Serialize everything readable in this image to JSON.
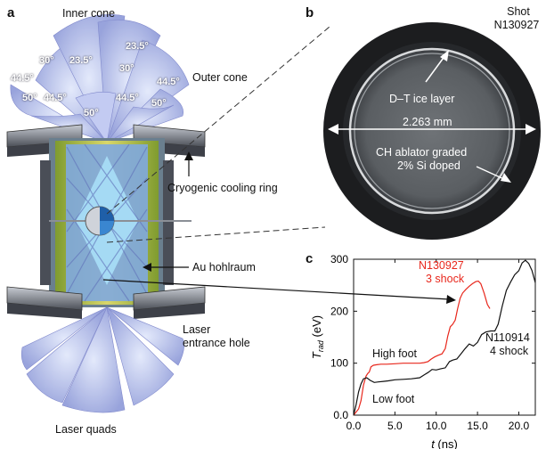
{
  "figure": {
    "panel_a": {
      "letter": "a",
      "inner_cone": "Inner cone",
      "outer_cone": "Outer cone",
      "cryo_ring": "Cryogenic cooling ring",
      "hohlraum": "Au hohlraum",
      "entrance_hole_1": "Laser",
      "entrance_hole_2": "entrance hole",
      "laser_quads": "Laser quads",
      "angles": [
        "30°",
        "23.5°",
        "23.5°",
        "30°",
        "44.5°",
        "44.5°",
        "50°",
        "44.5°",
        "50°",
        "44.5°",
        "50°"
      ]
    },
    "panel_b": {
      "letter": "b",
      "shot_1": "Shot",
      "shot_2": "N130927",
      "ice_layer": "D–T ice layer",
      "diameter": "2.263 mm",
      "ablator_1": "CH ablator graded",
      "ablator_2": "2% Si doped"
    },
    "panel_c": {
      "letter": "c"
    }
  },
  "chart_data": {
    "type": "line",
    "xlabel_var": "t",
    "xlabel_unit": "(ns)",
    "ylabel_var": "T",
    "ylabel_sub": "rad",
    "ylabel_unit": "(eV)",
    "xlim": [
      0,
      22
    ],
    "ylim": [
      0,
      300
    ],
    "xticks": [
      "0.0",
      "5.0",
      "10.0",
      "15.0",
      "20.0"
    ],
    "xtick_values": [
      0,
      5,
      10,
      15,
      20
    ],
    "yticks": [
      "0.0",
      "100",
      "200",
      "300"
    ],
    "ytick_values": [
      0,
      100,
      200,
      300
    ],
    "annotations": {
      "high_foot": "High foot",
      "low_foot": "Low foot",
      "s1_name": "N130927",
      "s1_desc": "3 shock",
      "s2_name": "N110914",
      "s2_desc": "4 shock"
    },
    "colors": {
      "s1": "#e8271c",
      "s2": "#111111"
    },
    "series": [
      {
        "name": "N130927",
        "values": [
          [
            0.0,
            0
          ],
          [
            0.3,
            6
          ],
          [
            0.6,
            12
          ],
          [
            0.9,
            28
          ],
          [
            1.2,
            58
          ],
          [
            1.5,
            75
          ],
          [
            1.7,
            80
          ],
          [
            1.9,
            83
          ],
          [
            2.1,
            93
          ],
          [
            2.4,
            96
          ],
          [
            2.8,
            97
          ],
          [
            3.3,
            98
          ],
          [
            4.0,
            98
          ],
          [
            5.0,
            99
          ],
          [
            6.0,
            100
          ],
          [
            7.0,
            100
          ],
          [
            8.0,
            100
          ],
          [
            8.5,
            101
          ],
          [
            9.0,
            103
          ],
          [
            9.4,
            108
          ],
          [
            9.8,
            112
          ],
          [
            10.2,
            115
          ],
          [
            10.7,
            118
          ],
          [
            11.1,
            128
          ],
          [
            11.4,
            152
          ],
          [
            11.7,
            170
          ],
          [
            12.0,
            175
          ],
          [
            12.3,
            183
          ],
          [
            12.6,
            205
          ],
          [
            12.9,
            225
          ],
          [
            13.2,
            235
          ],
          [
            13.6,
            242
          ],
          [
            14.0,
            248
          ],
          [
            14.4,
            253
          ],
          [
            14.8,
            257
          ],
          [
            15.1,
            258
          ],
          [
            15.4,
            253
          ],
          [
            15.8,
            235
          ],
          [
            16.2,
            213
          ],
          [
            16.5,
            205
          ]
        ]
      },
      {
        "name": "N110914",
        "values": [
          [
            0.0,
            0
          ],
          [
            0.3,
            20
          ],
          [
            0.6,
            45
          ],
          [
            0.9,
            60
          ],
          [
            1.2,
            70
          ],
          [
            1.6,
            72
          ],
          [
            2.0,
            67
          ],
          [
            2.5,
            63
          ],
          [
            3.0,
            64
          ],
          [
            3.6,
            65
          ],
          [
            4.2,
            66
          ],
          [
            5.0,
            68
          ],
          [
            6.0,
            69
          ],
          [
            7.0,
            70
          ],
          [
            8.0,
            72
          ],
          [
            8.6,
            78
          ],
          [
            9.0,
            82
          ],
          [
            9.5,
            88
          ],
          [
            10.0,
            87
          ],
          [
            10.5,
            89
          ],
          [
            11.1,
            91
          ],
          [
            11.6,
            103
          ],
          [
            12.0,
            106
          ],
          [
            12.5,
            108
          ],
          [
            13.0,
            118
          ],
          [
            13.5,
            128
          ],
          [
            14.0,
            137
          ],
          [
            14.5,
            133
          ],
          [
            15.0,
            140
          ],
          [
            15.5,
            155
          ],
          [
            16.0,
            160
          ],
          [
            16.6,
            162
          ],
          [
            17.1,
            162
          ],
          [
            17.5,
            175
          ],
          [
            18.0,
            210
          ],
          [
            18.5,
            240
          ],
          [
            19.0,
            256
          ],
          [
            19.5,
            270
          ],
          [
            20.0,
            278
          ],
          [
            20.4,
            293
          ],
          [
            20.8,
            298
          ],
          [
            21.2,
            292
          ],
          [
            21.6,
            278
          ],
          [
            22.0,
            255
          ]
        ]
      }
    ]
  }
}
